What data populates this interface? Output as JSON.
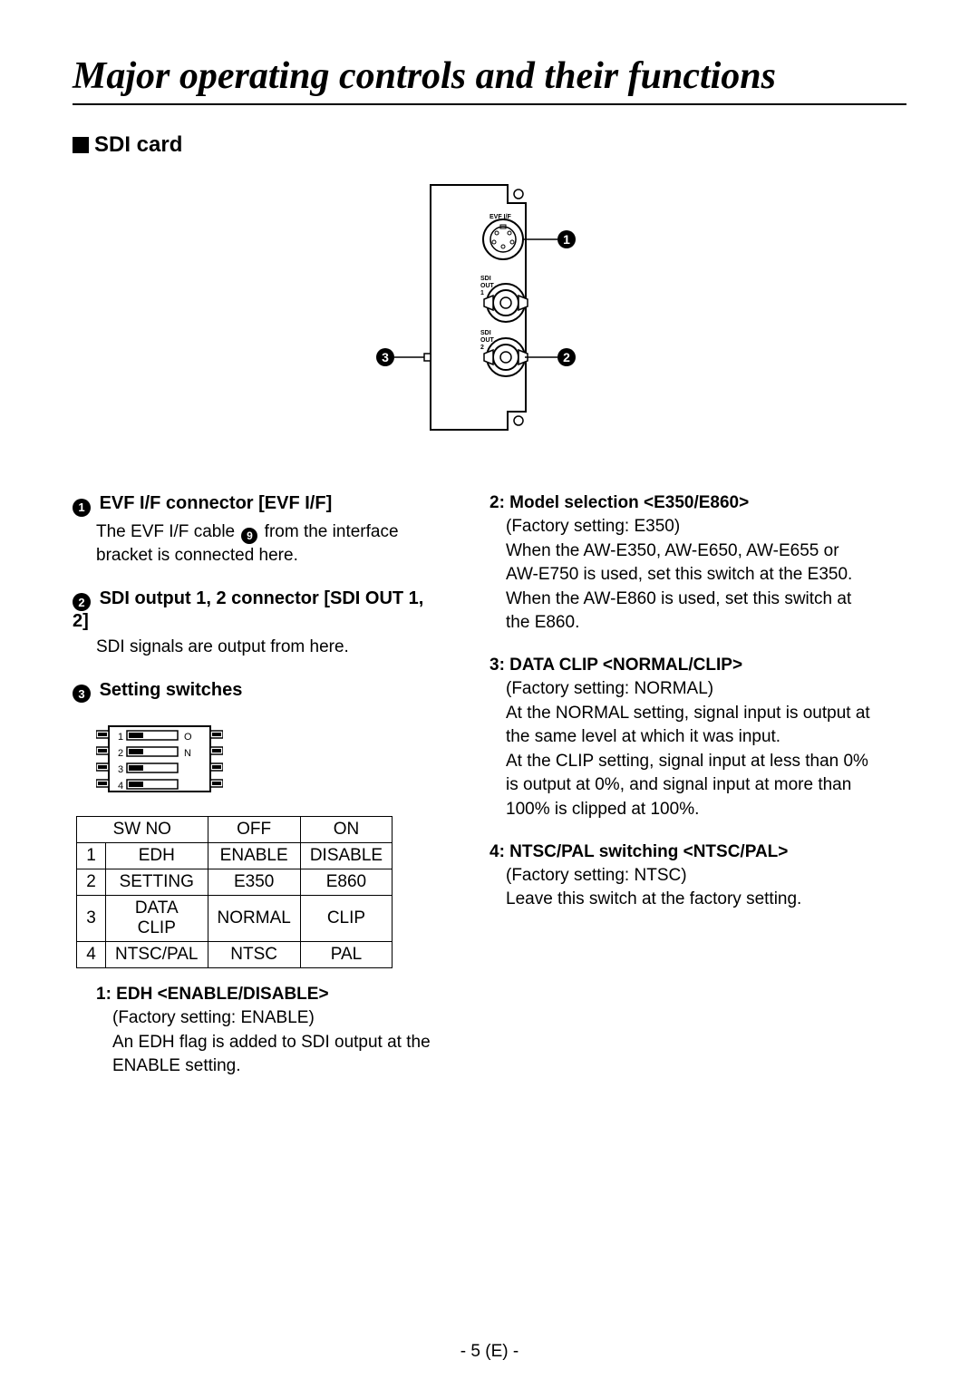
{
  "title": "Major operating controls and their functions",
  "subtitle": "SDI card",
  "diagram": {
    "labels_top": "EVF I/F",
    "labels_sdi1": "SDI OUT 1",
    "labels_sdi2": "SDI OUT 2",
    "callout1": "1",
    "callout2": "2",
    "callout3": "3"
  },
  "items": {
    "evf": {
      "num": "1",
      "title": "EVF I/F connector [EVF I/F]",
      "body_pre": "The EVF I/F cable ",
      "body_ref": "9",
      "body_post": " from the interface bracket is connected here."
    },
    "sdi": {
      "num": "2",
      "title": "SDI output 1, 2 connector [SDI OUT 1, 2]",
      "body": "SDI signals are output from here."
    },
    "switches": {
      "num": "3",
      "title": "Setting switches"
    }
  },
  "dip": {
    "rows": [
      "1",
      "2",
      "3",
      "4"
    ],
    "side_left_O": "O",
    "side_left_N": "N"
  },
  "table": {
    "header": {
      "swno": "SW NO",
      "off": "OFF",
      "on": "ON"
    },
    "rows": [
      {
        "n": "1",
        "name": "EDH",
        "off": "ENABLE",
        "on": "DISABLE"
      },
      {
        "n": "2",
        "name": "SETTING",
        "off": "E350",
        "on": "E860"
      },
      {
        "n": "3",
        "name": "DATA CLIP",
        "off": "NORMAL",
        "on": "CLIP"
      },
      {
        "n": "4",
        "name": "NTSC/PAL",
        "off": "NTSC",
        "on": "PAL"
      }
    ]
  },
  "switch_desc": {
    "edh": {
      "title": "1: EDH <ENABLE/DISABLE>",
      "body": "(Factory setting: ENABLE)\nAn EDH flag is added to SDI output at the ENABLE setting."
    },
    "model": {
      "title": "2: Model selection <E350/E860>",
      "body": "(Factory setting: E350)\nWhen the AW-E350, AW-E650, AW-E655 or AW-E750 is used, set this switch at the E350.\nWhen the AW-E860 is used, set this switch at the E860."
    },
    "clip": {
      "title": "3: DATA CLIP <NORMAL/CLIP>",
      "body": "(Factory setting: NORMAL)\nAt the NORMAL setting, signal input is output at the same level at which it was input.\nAt the CLIP setting, signal input at less than 0% is output at 0%, and signal input at more than 100% is clipped at 100%."
    },
    "ntsc": {
      "title": "4: NTSC/PAL switching <NTSC/PAL>",
      "body": "(Factory setting: NTSC)\nLeave this switch at the factory setting."
    }
  },
  "page_number": "- 5 (E) -",
  "colors": {
    "text": "#000000",
    "bg": "#ffffff"
  }
}
